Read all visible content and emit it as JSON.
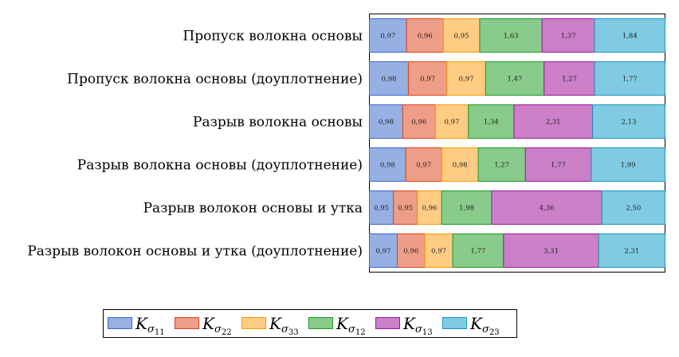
{
  "chart_data": {
    "type": "bar",
    "orientation": "horizontal",
    "stacked": true,
    "normalized": true,
    "categories": [
      "Пропуск волокна основы",
      "Пропуск волокна основы (доуплотнение)",
      "Разрыв волокна основы",
      "Разрыв волокна основы (доуплотнение)",
      "Разрыв волокон основы и утка",
      "Разрыв волокон основы и утка (доуплотнение)"
    ],
    "series": [
      {
        "name": "K_σ11",
        "base": "K",
        "sub": "σ",
        "idx": "11",
        "color": "#97b0e3",
        "stroke": "#3a66c9",
        "values": [
          0.97,
          0.98,
          0.98,
          0.98,
          0.95,
          0.97
        ],
        "labels": [
          "0,97",
          "0,98",
          "0,98",
          "0,98",
          "0,95",
          "0,97"
        ]
      },
      {
        "name": "K_σ22",
        "base": "K",
        "sub": "σ",
        "idx": "22",
        "color": "#ee9e88",
        "stroke": "#e0401a",
        "values": [
          0.96,
          0.97,
          0.96,
          0.97,
          0.95,
          0.96
        ],
        "labels": [
          "0,96",
          "0,97",
          "0,96",
          "0,97",
          "0,95",
          "0,96"
        ]
      },
      {
        "name": "K_σ33",
        "base": "K",
        "sub": "σ",
        "idx": "33",
        "color": "#fecc82",
        "stroke": "#f59c00",
        "values": [
          0.95,
          0.97,
          0.97,
          0.98,
          0.96,
          0.97
        ],
        "labels": [
          "0,95",
          "0,97",
          "0,97",
          "0,98",
          "0,96",
          "0,97"
        ]
      },
      {
        "name": "K_σ12",
        "base": "K",
        "sub": "σ",
        "idx": "12",
        "color": "#89cb8b",
        "stroke": "#1c9a25",
        "values": [
          1.63,
          1.47,
          1.34,
          1.27,
          1.98,
          1.77
        ],
        "labels": [
          "1,63",
          "1,47",
          "1,34",
          "1,27",
          "1,98",
          "1,77"
        ]
      },
      {
        "name": "K_σ13",
        "base": "K",
        "sub": "σ",
        "idx": "13",
        "color": "#cb80c8",
        "stroke": "#9a1a9a",
        "values": [
          1.37,
          1.27,
          2.31,
          1.77,
          4.36,
          3.31
        ],
        "labels": [
          "1,37",
          "1,27",
          "2,31",
          "1,77",
          "4,36",
          "3,31"
        ]
      },
      {
        "name": "K_σ23",
        "base": "K",
        "sub": "σ",
        "idx": "23",
        "color": "#80cbe2",
        "stroke": "#1896bf",
        "values": [
          1.84,
          1.77,
          2.13,
          1.99,
          2.5,
          2.31
        ],
        "labels": [
          "1,84",
          "1,77",
          "2,13",
          "1,99",
          "2,50",
          "2,31"
        ]
      }
    ],
    "title": "",
    "xlabel": "",
    "ylabel": "",
    "grid": false,
    "legend_position": "bottom"
  }
}
